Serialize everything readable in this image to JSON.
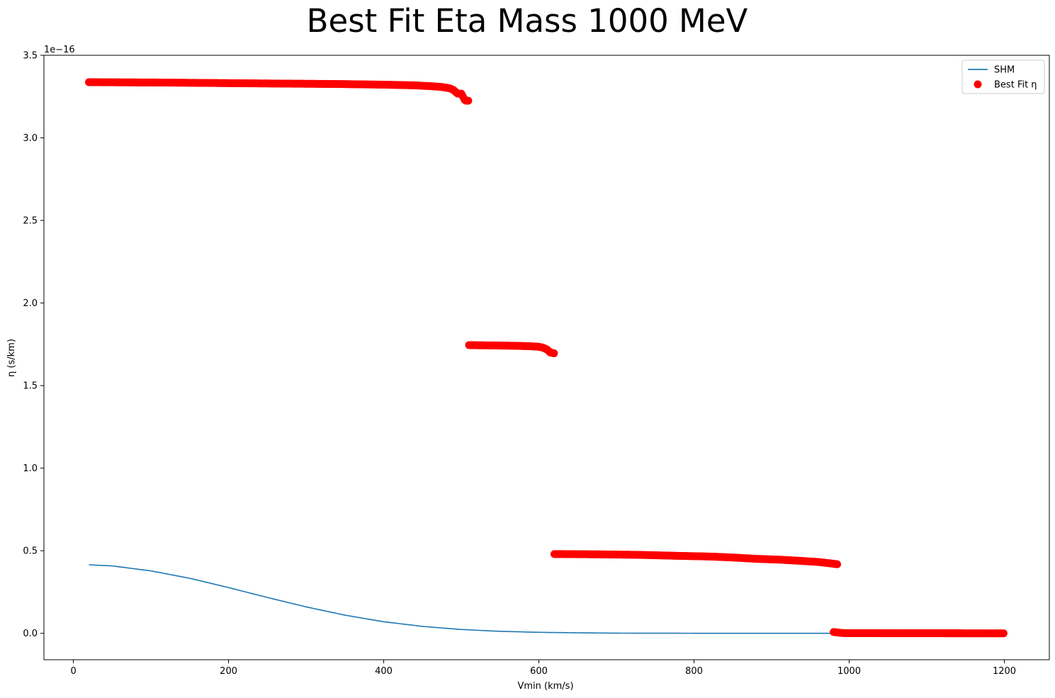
{
  "chart_data": {
    "type": "scatter",
    "title": "Best Fit Eta Mass 1000 MeV",
    "xlabel": "Vmin (km/s)",
    "ylabel": "η (s/km)",
    "y_offset_text": "1e−16",
    "y_unit_multiplier": 1e-16,
    "xlim": [
      -38,
      1258
    ],
    "ylim": [
      -0.16,
      3.5
    ],
    "x_ticks": [
      0,
      200,
      400,
      600,
      800,
      1000,
      1200
    ],
    "x_tick_labels": [
      "0",
      "200",
      "400",
      "600",
      "800",
      "1000",
      "1200"
    ],
    "y_ticks": [
      0.0,
      0.5,
      1.0,
      1.5,
      2.0,
      2.5,
      3.0,
      3.5
    ],
    "y_tick_labels": [
      "0.0",
      "0.5",
      "1.0",
      "1.5",
      "2.0",
      "2.5",
      "3.0",
      "3.5"
    ],
    "grid": false,
    "legend_position": "upper right",
    "legend": [
      {
        "label": "SHM",
        "kind": "line",
        "color": "#1f77b4"
      },
      {
        "label": "Best Fit η",
        "kind": "marker",
        "color": "#ff0000"
      }
    ],
    "series": [
      {
        "name": "SHM",
        "kind": "line",
        "color": "#1f77b4",
        "x": [
          20,
          50,
          100,
          150,
          200,
          250,
          300,
          350,
          400,
          450,
          500,
          550,
          600,
          650,
          700,
          800,
          1000,
          1200
        ],
        "y": [
          0.415,
          0.408,
          0.378,
          0.333,
          0.277,
          0.217,
          0.16,
          0.11,
          0.07,
          0.042,
          0.023,
          0.012,
          0.006,
          0.003,
          0.001,
          0.0003,
          0.0,
          0.0
        ]
      },
      {
        "name": "Best Fit η",
        "kind": "scatter",
        "color": "#ff0000",
        "segments": [
          {
            "x": [
              20,
              110,
              230,
              340,
              400,
              440,
              460,
              475,
              485,
              490,
              495,
              500,
              505,
              510
            ],
            "y": [
              3.337,
              3.335,
              3.33,
              3.326,
              3.322,
              3.318,
              3.313,
              3.308,
              3.3,
              3.29,
              3.268,
              3.268,
              3.225,
              3.225
            ]
          },
          {
            "x": [
              510,
              540,
              570,
              590,
              600,
              605,
              610,
              615,
              620
            ],
            "y": [
              1.745,
              1.743,
              1.741,
              1.738,
              1.735,
              1.73,
              1.72,
              1.7,
              1.695
            ]
          },
          {
            "x": [
              620,
              680,
              730,
              780,
              820,
              850,
              880,
              910,
              940,
              960,
              975,
              985
            ],
            "y": [
              0.48,
              0.478,
              0.475,
              0.469,
              0.465,
              0.459,
              0.451,
              0.446,
              0.438,
              0.432,
              0.424,
              0.418
            ]
          },
          {
            "x": [
              980,
              990,
              1000,
              1050,
              1100,
              1150,
              1200
            ],
            "y": [
              0.008,
              0.002,
              0.001,
              0.0005,
              0.0002,
              0.0001,
              0.0
            ]
          }
        ]
      }
    ]
  }
}
